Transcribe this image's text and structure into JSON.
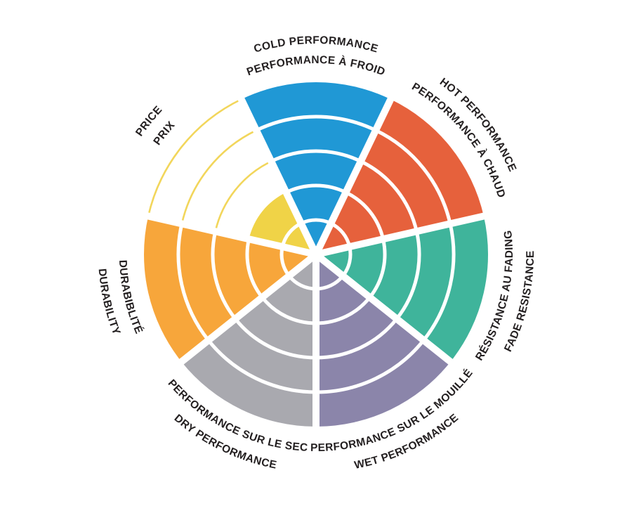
{
  "chart_data": {
    "type": "pie",
    "variant": "polar-rating-wheel",
    "rings": 5,
    "max_value": 5,
    "background": "#FFFFFF",
    "divider_color": "#FFFFFF",
    "label_color": "#231F20",
    "categories": [
      {
        "id": "cold-performance",
        "line1": "COLD PERFORMANCE",
        "line2": "PERFORMANCE À FROID",
        "value": 5,
        "color": "#2098D5"
      },
      {
        "id": "hot-performance",
        "line1": "HOT PERFORMANCE",
        "line2": "PERFORMANCE À CHAUD",
        "value": 5,
        "color": "#E6613C"
      },
      {
        "id": "fade-resistance",
        "line1": "RÉSISTANCE AU FADING",
        "line2": "FADE RESISTANCE",
        "value": 5,
        "color": "#3FB49B"
      },
      {
        "id": "wet-performance",
        "line1": "PERFORMANCE SUR LE MOUILLÉ",
        "line2": "WET PERFORMANCE",
        "value": 5,
        "color": "#8B85AA"
      },
      {
        "id": "dry-performance",
        "line1": "PERFORMANCE SUR LE SEC",
        "line2": "DRY PERFORMANCE",
        "value": 5,
        "color": "#A9A9AF"
      },
      {
        "id": "durability",
        "line1": "DURABIBLITÉ",
        "line2": "DURABILITY",
        "value": 5,
        "color": "#F7A63B"
      },
      {
        "id": "price",
        "line1": "PRICE",
        "line2": "PRIX",
        "value": 2,
        "color": "#F0D347",
        "arc_color": "#F2D65B"
      }
    ]
  }
}
